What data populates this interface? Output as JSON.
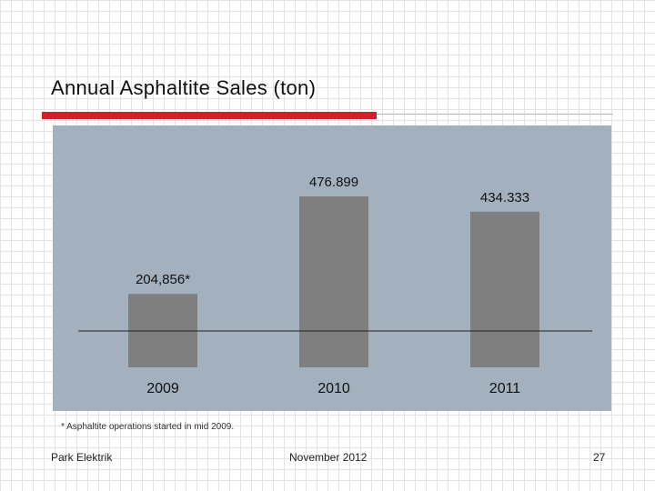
{
  "slide": {
    "title": "Annual Asphaltite Sales (ton)",
    "footnote": "* Asphaltite operations started in mid 2009.",
    "footer": {
      "left": "Park Elektrik",
      "center": "November 2012",
      "page_number": "27"
    }
  },
  "colors": {
    "accent_red": "#d0202a",
    "rule_gray": "#b5b5b5",
    "panel_bg": "#a3b1be",
    "bar_fill": "#7f7f7f",
    "baseline": "#222222",
    "text": "#111111"
  },
  "chart_data": {
    "type": "bar",
    "title": "Annual Asphaltite Sales (ton)",
    "categories": [
      "2009",
      "2010",
      "2011"
    ],
    "values": [
      204856,
      476899,
      434333
    ],
    "data_labels": [
      "204,856*",
      "476.899",
      "434.333"
    ],
    "xlabel": "",
    "ylabel": "",
    "ylim": [
      0,
      476899
    ],
    "grid": false,
    "legend": "none"
  }
}
